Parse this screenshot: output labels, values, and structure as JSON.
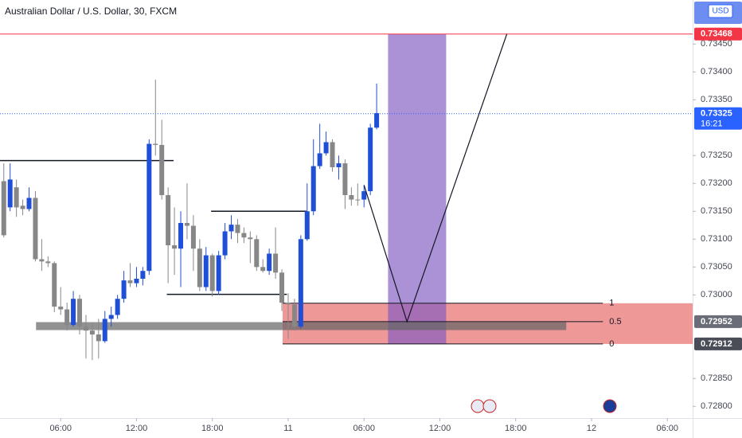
{
  "header": {
    "title": "Australian Dollar / U.S. Dollar, 30, FXCM"
  },
  "chart_data": {
    "type": "candlestick",
    "up_color": "#1e4fd6",
    "down_color": "#878787",
    "x": [
      1.5,
      2,
      2.5,
      3,
      3.5,
      4,
      4.5,
      5,
      5.5,
      6,
      6.5,
      7,
      7.5,
      8,
      8.5,
      9,
      9.5,
      10,
      10.5,
      11,
      11.5,
      12,
      12.5,
      13,
      13.5,
      14,
      14.5,
      15,
      15.5,
      16,
      16.5,
      17,
      17.5,
      18,
      18.5,
      19,
      19.5,
      20,
      20.5,
      21,
      21.5,
      22,
      22.5,
      23,
      23.5,
      24,
      24.5,
      25,
      25.5,
      26,
      26.5,
      27,
      27.5,
      28,
      28.5,
      29,
      29.5,
      30,
      30.5,
      31
    ],
    "open": [
      0.73204,
      0.73157,
      0.73193,
      0.7316,
      0.73154,
      0.73174,
      0.73064,
      0.7306,
      0.73057,
      0.72979,
      0.72974,
      0.72946,
      0.72993,
      0.72943,
      0.72936,
      0.72929,
      0.72917,
      0.72957,
      0.72964,
      0.72993,
      0.73026,
      0.73021,
      0.73029,
      0.73043,
      0.73271,
      0.73269,
      0.73179,
      0.73089,
      0.73083,
      0.73129,
      0.73124,
      0.73083,
      0.73014,
      0.73071,
      0.73007,
      0.73071,
      0.73114,
      0.73126,
      0.73111,
      0.73103,
      0.731,
      0.7305,
      0.73043,
      0.73074,
      0.7304,
      0.72986,
      0.72983,
      0.72943,
      0.731,
      0.7315,
      0.73231,
      0.73254,
      0.73274,
      0.73229,
      0.73236,
      0.73179,
      0.73171,
      0.73171,
      0.73186,
      0.733
    ],
    "high": [
      0.73236,
      0.73236,
      0.73207,
      0.73171,
      0.73193,
      0.73186,
      0.731,
      0.73069,
      0.7306,
      0.73014,
      0.72986,
      0.73007,
      0.73,
      0.72964,
      0.7295,
      0.72957,
      0.72971,
      0.72979,
      0.73,
      0.73043,
      0.73057,
      0.7305,
      0.7305,
      0.73279,
      0.73386,
      0.73314,
      0.73193,
      0.73157,
      0.7315,
      0.732,
      0.73143,
      0.731,
      0.73086,
      0.73074,
      0.73079,
      0.73129,
      0.73143,
      0.73136,
      0.73121,
      0.73114,
      0.73107,
      0.73064,
      0.73083,
      0.73121,
      0.73046,
      0.73003,
      0.72993,
      0.73107,
      0.732,
      0.73279,
      0.73307,
      0.73293,
      0.73279,
      0.7325,
      0.73243,
      0.73193,
      0.732,
      0.73197,
      0.73307,
      0.73379
    ],
    "low": [
      0.73103,
      0.7315,
      0.7314,
      0.73143,
      0.7315,
      0.7306,
      0.73043,
      0.7305,
      0.72969,
      0.72964,
      0.72936,
      0.72943,
      0.72929,
      0.72886,
      0.72883,
      0.72886,
      0.72914,
      0.72943,
      0.72957,
      0.72986,
      0.73014,
      0.73014,
      0.73017,
      0.73036,
      0.7325,
      0.73171,
      0.73021,
      0.73036,
      0.73014,
      0.731,
      0.73043,
      0.73007,
      0.73007,
      0.72997,
      0.73,
      0.73064,
      0.731,
      0.73093,
      0.73093,
      0.73057,
      0.73043,
      0.7304,
      0.73036,
      0.73029,
      0.72971,
      0.72921,
      0.72936,
      0.7294,
      0.73097,
      0.73143,
      0.73226,
      0.7325,
      0.73221,
      0.73207,
      0.73154,
      0.7316,
      0.7316,
      0.73157,
      0.73179,
      0.73297
    ],
    "close": [
      0.73107,
      0.73207,
      0.73157,
      0.73154,
      0.73174,
      0.73064,
      0.7306,
      0.73057,
      0.72979,
      0.72974,
      0.72946,
      0.72993,
      0.72943,
      0.72936,
      0.72929,
      0.72917,
      0.72957,
      0.72964,
      0.72993,
      0.73026,
      0.73021,
      0.73029,
      0.73043,
      0.73271,
      0.73269,
      0.73179,
      0.73089,
      0.73083,
      0.73129,
      0.73124,
      0.73083,
      0.73014,
      0.73071,
      0.73007,
      0.73071,
      0.73114,
      0.73126,
      0.73111,
      0.73103,
      0.731,
      0.7305,
      0.73043,
      0.73074,
      0.7304,
      0.72986,
      0.72983,
      0.72943,
      0.731,
      0.7315,
      0.73231,
      0.73254,
      0.73274,
      0.73229,
      0.73236,
      0.73179,
      0.73171,
      0.73171,
      0.73186,
      0.733,
      0.73326
    ],
    "xlim": [
      1.2,
      56
    ],
    "xticks": [
      {
        "value": 6,
        "label": "06:00"
      },
      {
        "value": 12,
        "label": "12:00"
      },
      {
        "value": 18,
        "label": "18:00"
      },
      {
        "value": 24,
        "label": "11"
      },
      {
        "value": 30,
        "label": "06:00"
      },
      {
        "value": 36,
        "label": "12:00"
      },
      {
        "value": 42,
        "label": "18:00"
      },
      {
        "value": 48,
        "label": "12"
      },
      {
        "value": 54,
        "label": "06:00"
      }
    ],
    "ylim": [
      0.72779,
      0.73529
    ],
    "yticks": [
      {
        "value": 0.7345,
        "label": "0.73450"
      },
      {
        "value": 0.734,
        "label": "0.73400"
      },
      {
        "value": 0.7335,
        "label": "0.73350"
      },
      {
        "value": 0.7325,
        "label": "0.73250"
      },
      {
        "value": 0.732,
        "label": "0.73200"
      },
      {
        "value": 0.7315,
        "label": "0.73150"
      },
      {
        "value": 0.731,
        "label": "0.73100"
      },
      {
        "value": 0.7305,
        "label": "0.73050"
      },
      {
        "value": 0.73,
        "label": "0.73000"
      },
      {
        "value": 0.7285,
        "label": "0.72850"
      },
      {
        "value": 0.728,
        "label": "0.72800"
      }
    ],
    "currency": "USD",
    "last_price": 0.73325,
    "countdown": "16:21",
    "alert_line": 0.73468,
    "levels": [
      {
        "price": 0.73241,
        "x": [
          1.2,
          14.93
        ]
      },
      {
        "price": 0.7315,
        "x": [
          17.9,
          25.45
        ]
      },
      {
        "price": 0.73001,
        "x": [
          14.4,
          23.9
        ]
      }
    ],
    "band": {
      "price": 0.72944,
      "x": [
        4.05,
        46.0
      ]
    },
    "fib": {
      "levels": [
        1,
        0.5,
        0
      ],
      "prices": [
        0.72985,
        0.72952,
        0.72912
      ],
      "x": [
        23.56,
        48.9
      ],
      "zone_x": [
        23.56,
        56
      ]
    },
    "range_box": {
      "x": [
        31.9,
        36.5
      ],
      "ylim": [
        0.72912,
        0.73468
      ]
    },
    "path": {
      "x": [
        30.0,
        33.4,
        41.3
      ],
      "y": [
        0.73197,
        0.72952,
        0.73468
      ]
    },
    "price_labels": [
      0.72952,
      0.72912
    ]
  }
}
